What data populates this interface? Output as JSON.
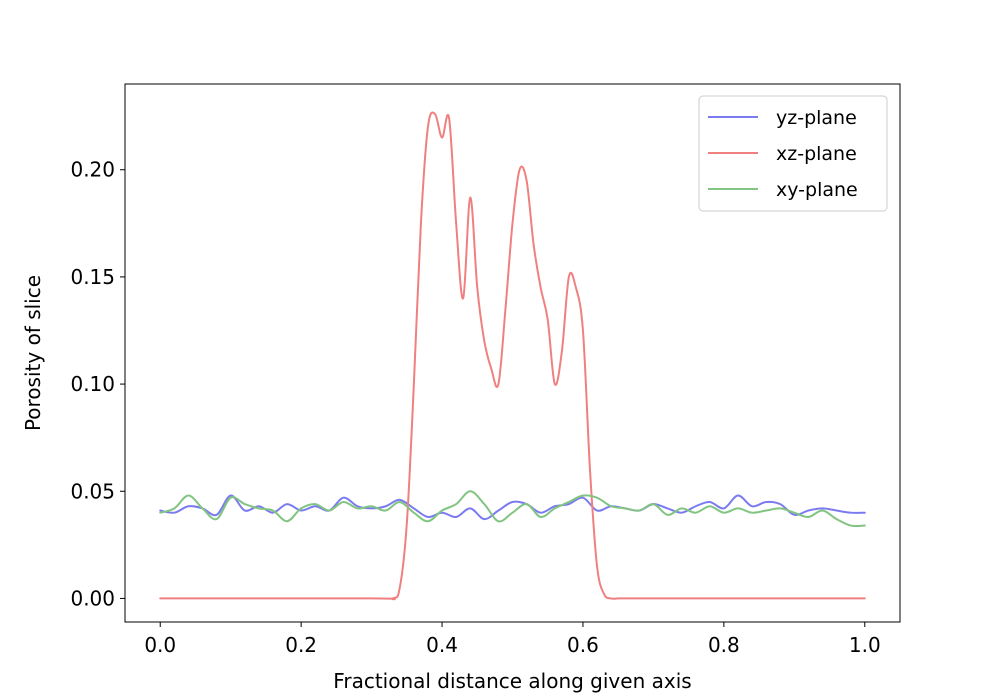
{
  "chart_data": {
    "type": "line",
    "title": "",
    "xlabel": "Fractional distance along given axis",
    "ylabel": "Porosity of slice",
    "xlim": [
      -0.05,
      1.05
    ],
    "ylim": [
      -0.011,
      0.24
    ],
    "xticks": [
      0.0,
      0.2,
      0.4,
      0.6,
      0.8,
      1.0
    ],
    "xtick_labels": [
      "0.0",
      "0.2",
      "0.4",
      "0.6",
      "0.8",
      "1.0"
    ],
    "yticks": [
      0.0,
      0.05,
      0.1,
      0.15,
      0.2
    ],
    "ytick_labels": [
      "0.00",
      "0.05",
      "0.10",
      "0.15",
      "0.20"
    ],
    "grid": false,
    "legend_position": "top-right",
    "series": [
      {
        "name": "yz-plane",
        "color": "#7b7bf0",
        "x": [
          0.0,
          0.02,
          0.04,
          0.06,
          0.08,
          0.1,
          0.12,
          0.14,
          0.16,
          0.18,
          0.2,
          0.22,
          0.24,
          0.26,
          0.28,
          0.3,
          0.32,
          0.34,
          0.36,
          0.38,
          0.4,
          0.42,
          0.44,
          0.46,
          0.48,
          0.5,
          0.52,
          0.54,
          0.56,
          0.58,
          0.6,
          0.62,
          0.64,
          0.66,
          0.68,
          0.7,
          0.72,
          0.74,
          0.76,
          0.78,
          0.8,
          0.82,
          0.84,
          0.86,
          0.88,
          0.9,
          0.92,
          0.94,
          0.96,
          0.98,
          1.0
        ],
        "y": [
          0.041,
          0.04,
          0.043,
          0.042,
          0.039,
          0.048,
          0.041,
          0.043,
          0.04,
          0.044,
          0.041,
          0.043,
          0.041,
          0.047,
          0.043,
          0.042,
          0.043,
          0.046,
          0.042,
          0.038,
          0.04,
          0.038,
          0.042,
          0.037,
          0.041,
          0.045,
          0.044,
          0.04,
          0.043,
          0.044,
          0.047,
          0.041,
          0.043,
          0.042,
          0.041,
          0.044,
          0.042,
          0.04,
          0.043,
          0.045,
          0.042,
          0.048,
          0.043,
          0.045,
          0.044,
          0.039,
          0.041,
          0.042,
          0.041,
          0.04,
          0.04
        ]
      },
      {
        "name": "xz-plane",
        "color": "#f08080",
        "x": [
          0.0,
          0.3,
          0.33,
          0.34,
          0.35,
          0.36,
          0.37,
          0.38,
          0.39,
          0.4,
          0.41,
          0.42,
          0.43,
          0.44,
          0.45,
          0.46,
          0.47,
          0.48,
          0.49,
          0.5,
          0.51,
          0.52,
          0.53,
          0.54,
          0.55,
          0.56,
          0.57,
          0.58,
          0.59,
          0.6,
          0.61,
          0.62,
          0.63,
          0.64,
          0.65,
          0.66,
          0.7,
          1.0
        ],
        "y": [
          0.0,
          0.0,
          0.0,
          0.005,
          0.035,
          0.1,
          0.175,
          0.22,
          0.226,
          0.215,
          0.224,
          0.175,
          0.14,
          0.187,
          0.145,
          0.12,
          0.107,
          0.1,
          0.135,
          0.175,
          0.2,
          0.195,
          0.165,
          0.145,
          0.13,
          0.1,
          0.115,
          0.15,
          0.145,
          0.125,
          0.06,
          0.015,
          0.002,
          0.0,
          0.0,
          0.0,
          0.0,
          0.0
        ]
      },
      {
        "name": "xy-plane",
        "color": "#82c482",
        "x": [
          0.0,
          0.02,
          0.04,
          0.06,
          0.08,
          0.1,
          0.12,
          0.14,
          0.16,
          0.18,
          0.2,
          0.22,
          0.24,
          0.26,
          0.28,
          0.3,
          0.32,
          0.34,
          0.36,
          0.38,
          0.4,
          0.42,
          0.44,
          0.46,
          0.48,
          0.5,
          0.52,
          0.54,
          0.56,
          0.58,
          0.6,
          0.62,
          0.64,
          0.66,
          0.68,
          0.7,
          0.72,
          0.74,
          0.76,
          0.78,
          0.8,
          0.82,
          0.84,
          0.86,
          0.88,
          0.9,
          0.92,
          0.94,
          0.96,
          0.98,
          1.0
        ],
        "y": [
          0.04,
          0.042,
          0.048,
          0.042,
          0.037,
          0.047,
          0.044,
          0.042,
          0.041,
          0.036,
          0.042,
          0.044,
          0.041,
          0.045,
          0.042,
          0.043,
          0.041,
          0.045,
          0.04,
          0.036,
          0.041,
          0.044,
          0.05,
          0.044,
          0.036,
          0.04,
          0.044,
          0.038,
          0.042,
          0.045,
          0.048,
          0.047,
          0.043,
          0.042,
          0.041,
          0.044,
          0.039,
          0.042,
          0.04,
          0.043,
          0.04,
          0.042,
          0.04,
          0.041,
          0.042,
          0.04,
          0.038,
          0.041,
          0.037,
          0.034,
          0.034
        ]
      }
    ]
  }
}
